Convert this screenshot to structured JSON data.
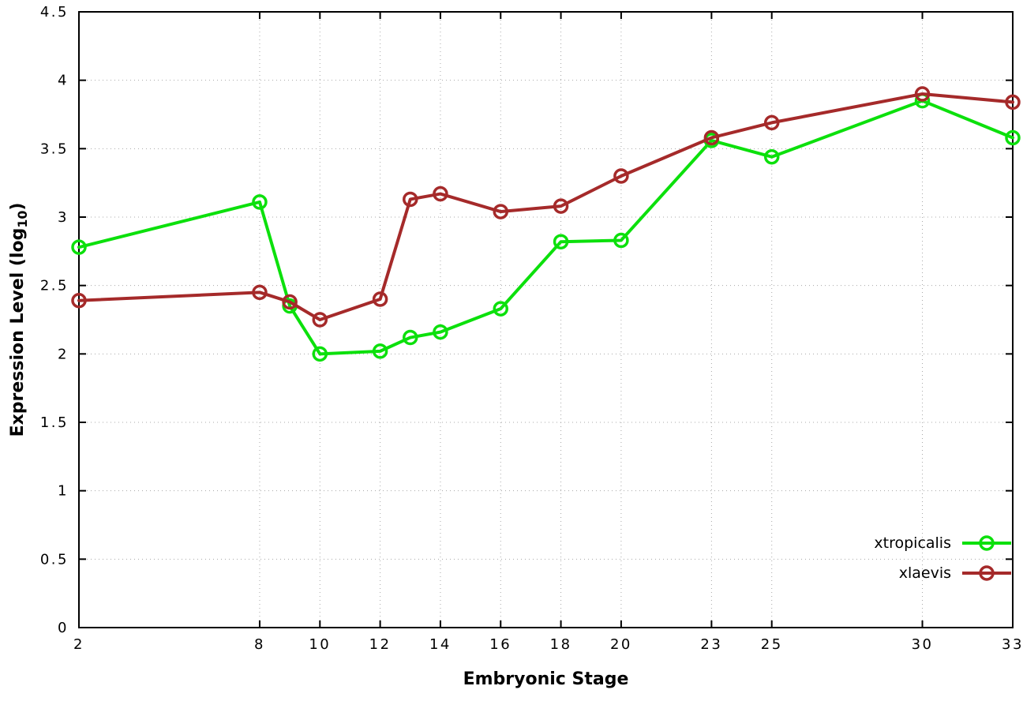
{
  "chart_data": {
    "type": "line",
    "title": "",
    "xlabel": "Embryonic Stage",
    "ylabel_main": "Expression Level (log",
    "ylabel_sub": "10",
    "ylabel_close": ")",
    "x": [
      2,
      8,
      9,
      10,
      12,
      13,
      14,
      16,
      18,
      20,
      23,
      25,
      30,
      33
    ],
    "xticks": [
      2,
      8,
      10,
      12,
      14,
      16,
      18,
      20,
      23,
      25,
      30,
      33
    ],
    "yticks": [
      0,
      0.5,
      1,
      1.5,
      2,
      2.5,
      3,
      3.5,
      4,
      4.5
    ],
    "xlim": [
      2,
      33
    ],
    "ylim": [
      0,
      4.5
    ],
    "grid": true,
    "legend_position": "bottom-right-inside",
    "series": [
      {
        "name": "xtropicalis",
        "color": "#0ce00c",
        "values": [
          2.78,
          3.11,
          2.35,
          2.0,
          2.02,
          2.12,
          2.16,
          2.33,
          2.82,
          2.83,
          3.56,
          3.44,
          3.85,
          3.58
        ]
      },
      {
        "name": "xlaevis",
        "color": "#a52a2a",
        "values": [
          2.39,
          2.45,
          2.38,
          2.25,
          2.4,
          3.13,
          3.17,
          3.04,
          3.08,
          3.3,
          3.58,
          3.69,
          3.9,
          3.84
        ]
      }
    ],
    "colors": {
      "grid": "#a8a8a8",
      "axis": "#000000",
      "background": "#ffffff"
    }
  }
}
